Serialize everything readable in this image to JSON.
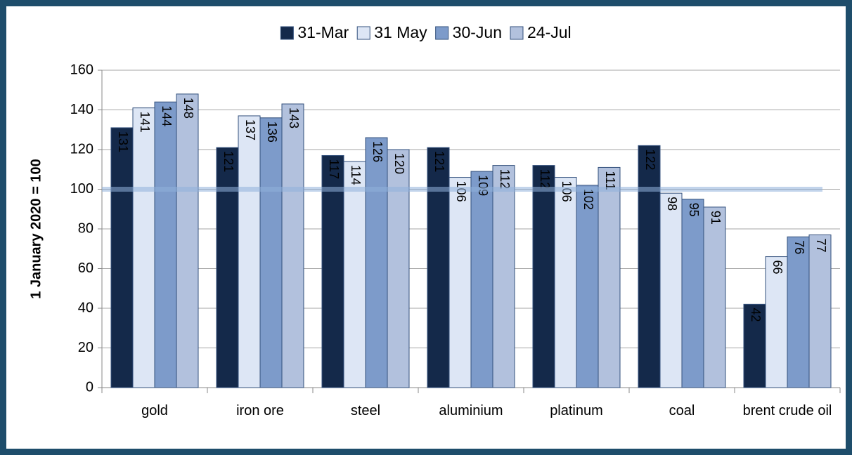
{
  "chart_data": {
    "type": "bar",
    "y_axis_label": "1 January 2020 = 100",
    "categories": [
      "gold",
      "iron ore",
      "steel",
      "aluminium",
      "platinum",
      "coal",
      "brent crude oil"
    ],
    "series": [
      {
        "name": "31-Mar",
        "color": "#14294a",
        "values": [
          131,
          121,
          117,
          121,
          112,
          122,
          42
        ]
      },
      {
        "name": "31 May",
        "color": "#dde6f5",
        "values": [
          141,
          137,
          114,
          106,
          106,
          98,
          66
        ]
      },
      {
        "name": "30-Jun",
        "color": "#7d9bca",
        "values": [
          144,
          136,
          126,
          109,
          102,
          95,
          76
        ]
      },
      {
        "name": "24-Jul",
        "color": "#b2c1dd",
        "values": [
          148,
          143,
          120,
          112,
          111,
          91,
          77
        ]
      }
    ],
    "reference_value": 100,
    "ylim": [
      0,
      160
    ],
    "yticks": [
      0,
      20,
      40,
      60,
      80,
      100,
      120,
      140,
      160
    ],
    "grid": true
  }
}
